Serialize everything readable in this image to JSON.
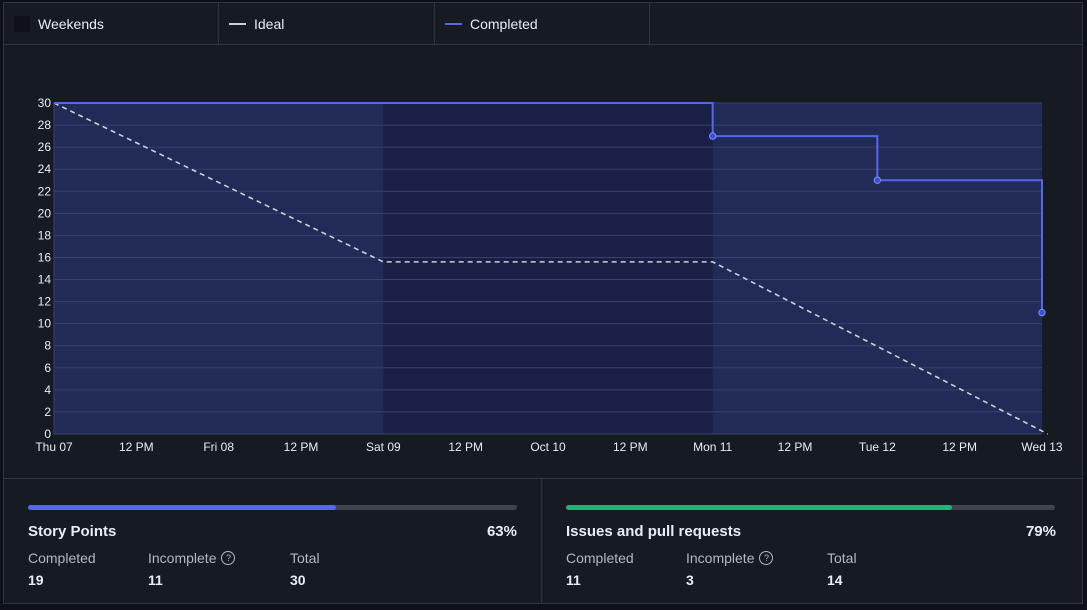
{
  "legend": {
    "weekends_label": "Weekends",
    "ideal_label": "Ideal",
    "completed_label": "Completed"
  },
  "colors": {
    "completed": "#5566f0",
    "ideal": "#c9d1d9",
    "weekend_band": "#1a1f45",
    "area_fill": "#222a57",
    "story_bar": "#5566f0",
    "issues_bar": "#1fb57a"
  },
  "chart_data": {
    "type": "line",
    "x_ticks": [
      "Thu 07",
      "12 PM",
      "Fri 08",
      "12 PM",
      "Sat 09",
      "12 PM",
      "Oct 10",
      "12 PM",
      "Mon 11",
      "12 PM",
      "Tue 12",
      "12 PM",
      "Wed 13"
    ],
    "ylim": [
      0,
      30
    ],
    "y_ticks": [
      0,
      2,
      4,
      6,
      8,
      10,
      12,
      14,
      16,
      18,
      20,
      22,
      24,
      26,
      28,
      30
    ],
    "grid": true,
    "weekend_range": [
      "Sat 09",
      "Mon 11"
    ],
    "series": [
      {
        "name": "Ideal",
        "style": "dashed",
        "points": [
          {
            "x": "Thu 07",
            "y": 30
          },
          {
            "x": "Sat 09",
            "y": 15.6
          },
          {
            "x": "Mon 11",
            "y": 15.6
          },
          {
            "x": "Wed 13 end",
            "y": 0
          }
        ]
      },
      {
        "name": "Completed",
        "style": "step",
        "points": [
          {
            "x": "Thu 07",
            "y": 30
          },
          {
            "x": "Mon 11",
            "y": 27
          },
          {
            "x": "Tue 12",
            "y": 23
          },
          {
            "x": "Wed 13",
            "y": 11
          }
        ],
        "end_value": 11
      }
    ]
  },
  "story_points": {
    "title": "Story Points",
    "percent": "63%",
    "progress": 0.63,
    "completed_label": "Completed",
    "completed_value": "19",
    "incomplete_label": "Incomplete",
    "incomplete_value": "11",
    "total_label": "Total",
    "total_value": "30"
  },
  "issues": {
    "title": "Issues and pull requests",
    "percent": "79%",
    "progress": 0.79,
    "completed_label": "Completed",
    "completed_value": "11",
    "incomplete_label": "Incomplete",
    "incomplete_value": "3",
    "total_label": "Total",
    "total_value": "14"
  }
}
